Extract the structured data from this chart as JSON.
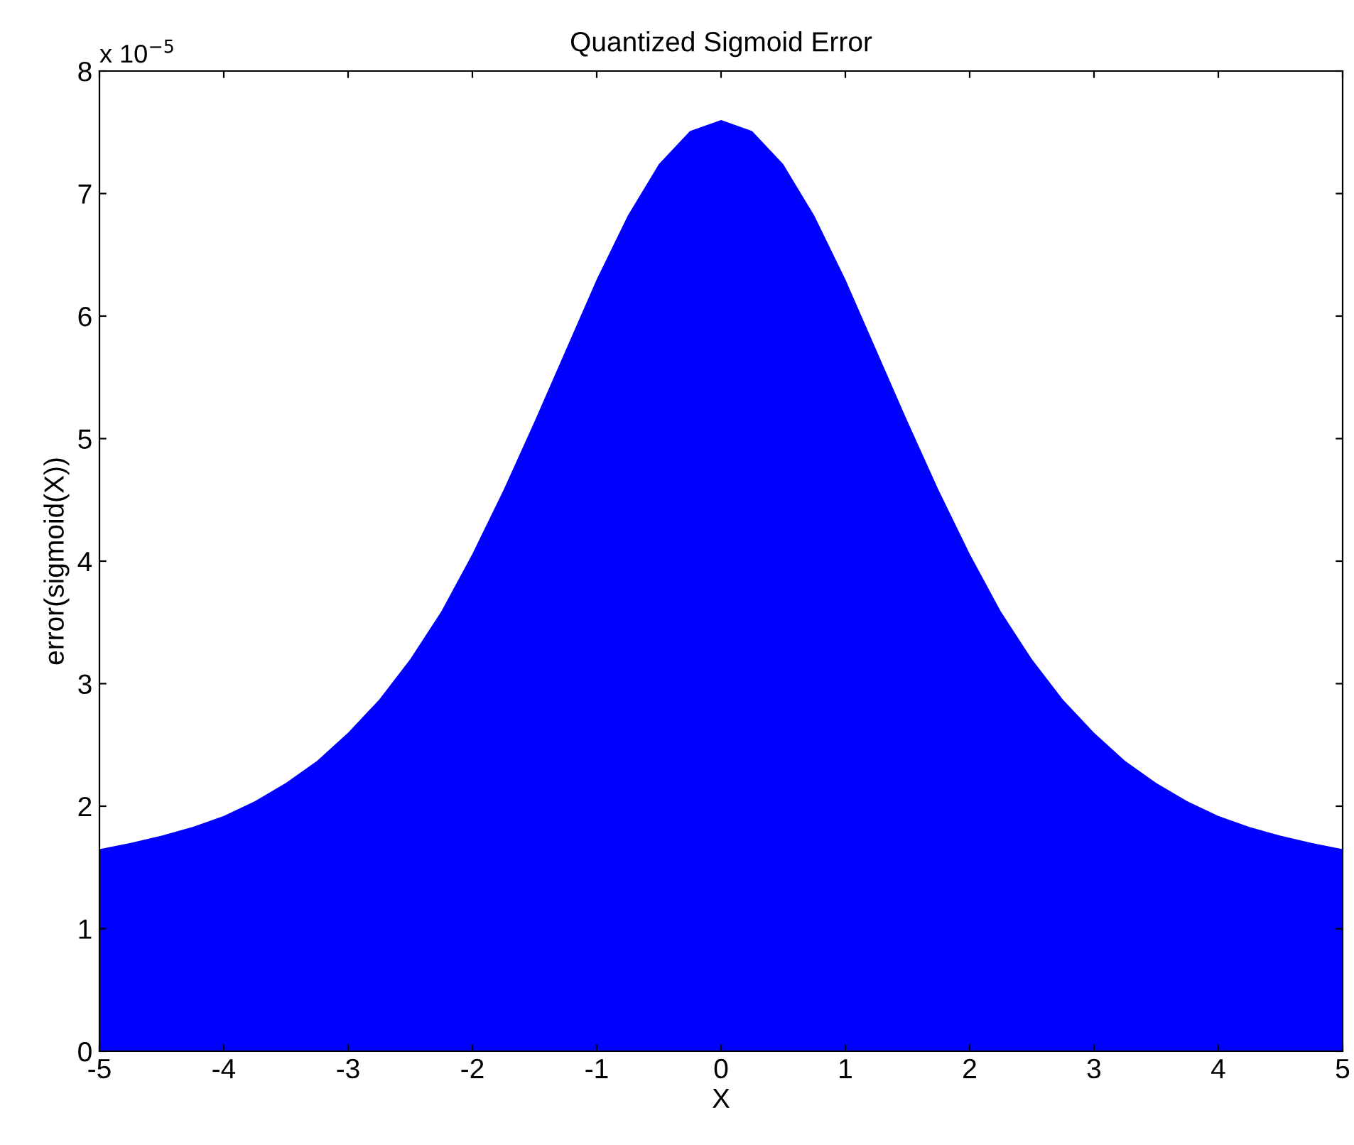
{
  "chart_data": {
    "type": "area",
    "title": "Quantized Sigmoid Error",
    "xlabel": "X",
    "ylabel": "error(sigmoid(X))",
    "annotations": [
      "x 10$^{−5}$"
    ],
    "x": [
      -5,
      -4.75,
      -4.5,
      -4.25,
      -4,
      -3.75,
      -3.5,
      -3.25,
      -3,
      -2.75,
      -2.5,
      -2.25,
      -2,
      -1.75,
      -1.5,
      -1.25,
      -1,
      -0.75,
      -0.5,
      -0.25,
      0,
      0.25,
      0.5,
      0.75,
      1,
      1.25,
      1.5,
      1.75,
      2,
      2.25,
      2.5,
      2.75,
      3,
      3.25,
      3.5,
      3.75,
      4,
      4.25,
      4.5,
      4.75,
      5
    ],
    "series": [
      {
        "color": "#0000ff",
        "values": [
          1.65,
          1.7,
          1.76,
          1.83,
          1.92,
          2.04,
          2.19,
          2.37,
          2.6,
          2.87,
          3.2,
          3.59,
          4.06,
          4.58,
          5.14,
          5.72,
          6.3,
          6.82,
          7.24,
          7.51,
          7.6,
          7.51,
          7.24,
          6.82,
          6.3,
          5.72,
          5.14,
          4.58,
          4.06,
          3.59,
          3.2,
          2.87,
          2.6,
          2.37,
          2.19,
          2.04,
          1.92,
          1.83,
          1.76,
          1.7,
          1.65
        ]
      }
    ],
    "xlim": [
      -5,
      5
    ],
    "xticks": [
      -5,
      -4,
      -3,
      -2,
      -1,
      0,
      1,
      2,
      3,
      4,
      5
    ],
    "ylim": [
      0,
      8
    ],
    "yticks": [
      0,
      1,
      2,
      3,
      4,
      5,
      6,
      7,
      8
    ],
    "grid": false,
    "legend": false
  }
}
